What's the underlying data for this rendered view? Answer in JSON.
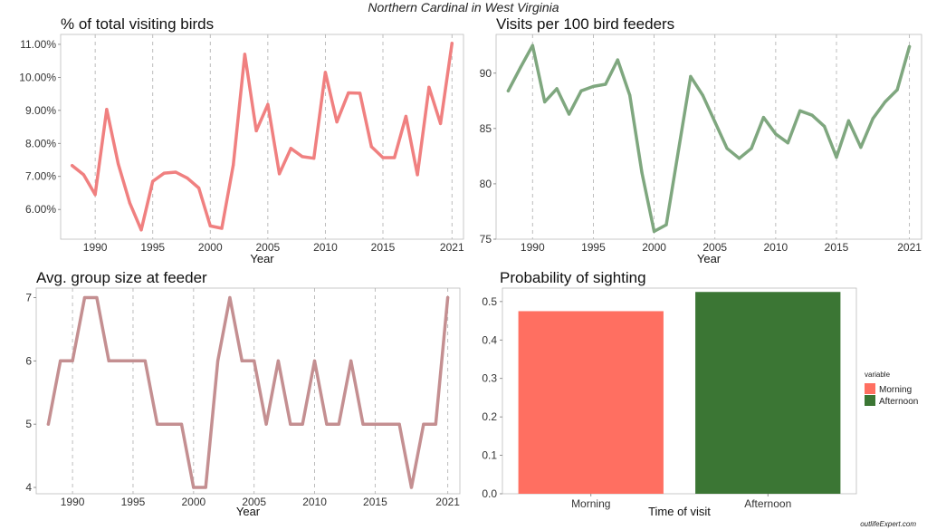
{
  "figure": {
    "title": "Northern Cardinal in West Virginia",
    "watermark": "outlifeExpert.com"
  },
  "chart_data": [
    {
      "type": "line",
      "title": "% of total visiting birds",
      "xlabel": "Year",
      "ylabel": "",
      "color": "#f08080",
      "xlim": [
        1987,
        2022
      ],
      "ylim": [
        5.1,
        11.3
      ],
      "x_ticks": [
        "1990",
        "1995",
        "2000",
        "2005",
        "2010",
        "2015",
        "2021"
      ],
      "y_ticks": [
        "6.00%",
        "7.00%",
        "8.00%",
        "9.00%",
        "10.00%",
        "11.00%"
      ],
      "y_tick_values": [
        6,
        7,
        8,
        9,
        10,
        11
      ],
      "x": [
        1988,
        1989,
        1990,
        1991,
        1992,
        1993,
        1994,
        1995,
        1996,
        1997,
        1998,
        1999,
        2000,
        2001,
        2002,
        2003,
        2004,
        2005,
        2006,
        2007,
        2008,
        2009,
        2010,
        2011,
        2012,
        2013,
        2014,
        2015,
        2016,
        2017,
        2018,
        2019,
        2020,
        2021
      ],
      "values": [
        7.33,
        7.05,
        6.45,
        9.03,
        7.38,
        6.2,
        5.38,
        6.85,
        7.1,
        7.13,
        6.95,
        6.65,
        5.5,
        5.43,
        7.35,
        10.7,
        8.38,
        9.18,
        7.08,
        7.85,
        7.6,
        7.55,
        10.15,
        8.65,
        9.53,
        9.52,
        7.9,
        7.57,
        7.57,
        8.82,
        7.05,
        9.7,
        8.6,
        11.03
      ]
    },
    {
      "type": "line",
      "title": "Visits per 100 bird feeders",
      "xlabel": "Year",
      "ylabel": "",
      "color": "#7fa77f",
      "xlim": [
        1987,
        2022
      ],
      "ylim": [
        75,
        93.5
      ],
      "x_ticks": [
        "1990",
        "1995",
        "2000",
        "2005",
        "2010",
        "2015",
        "2021"
      ],
      "y_ticks": [
        "75",
        "80",
        "85",
        "90"
      ],
      "y_tick_values": [
        75,
        80,
        85,
        90
      ],
      "x": [
        1988,
        1989,
        1990,
        1991,
        1992,
        1993,
        1994,
        1995,
        1996,
        1997,
        1998,
        1999,
        2000,
        2001,
        2002,
        2003,
        2004,
        2005,
        2006,
        2007,
        2008,
        2009,
        2010,
        2011,
        2012,
        2013,
        2014,
        2015,
        2016,
        2017,
        2018,
        2019,
        2020,
        2021
      ],
      "values": [
        88.4,
        90.5,
        92.5,
        87.4,
        88.6,
        86.3,
        88.4,
        88.8,
        89.0,
        91.2,
        88.0,
        81.0,
        75.7,
        76.3,
        83.0,
        89.7,
        88.0,
        85.6,
        83.2,
        82.3,
        83.2,
        86.0,
        84.5,
        83.7,
        86.6,
        86.2,
        85.2,
        82.4,
        85.7,
        83.3,
        85.9,
        87.4,
        88.5,
        92.4
      ]
    },
    {
      "type": "line",
      "title": "Avg. group size at feeder",
      "xlabel": "Year",
      "ylabel": "",
      "color": "#c48f91",
      "xlim": [
        1987,
        2022
      ],
      "ylim": [
        3.9,
        7.15
      ],
      "x_ticks": [
        "1990",
        "1995",
        "2000",
        "2005",
        "2010",
        "2015",
        "2021"
      ],
      "y_ticks": [
        "4",
        "5",
        "6",
        "7"
      ],
      "y_tick_values": [
        4,
        5,
        6,
        7
      ],
      "x": [
        1988,
        1989,
        1990,
        1991,
        1992,
        1993,
        1994,
        1995,
        1996,
        1997,
        1998,
        1999,
        2000,
        2001,
        2002,
        2003,
        2004,
        2005,
        2006,
        2007,
        2008,
        2009,
        2010,
        2011,
        2012,
        2013,
        2014,
        2015,
        2016,
        2017,
        2018,
        2019,
        2020,
        2021
      ],
      "values": [
        5,
        6,
        6,
        7,
        7,
        6,
        6,
        6,
        6,
        5,
        5,
        5,
        4,
        4,
        6,
        7,
        6,
        6,
        5,
        6,
        5,
        5,
        6,
        5,
        5,
        6,
        5,
        5,
        5,
        5,
        4,
        5,
        5,
        7
      ]
    },
    {
      "type": "bar",
      "title": "Probability of sighting",
      "xlabel": "Time of visit",
      "ylabel": "",
      "categories": [
        "Morning",
        "Afternoon"
      ],
      "values": [
        0.475,
        0.525
      ],
      "colors": [
        "#ff6f61",
        "#3b7634"
      ],
      "ylim": [
        0,
        0.535
      ],
      "y_ticks": [
        "0.0",
        "0.1",
        "0.2",
        "0.3",
        "0.4",
        "0.5"
      ],
      "y_tick_values": [
        0,
        0.1,
        0.2,
        0.3,
        0.4,
        0.5
      ],
      "legend": {
        "title": "variable",
        "placement": "right",
        "entries": [
          "Morning",
          "Afternoon"
        ]
      }
    }
  ]
}
